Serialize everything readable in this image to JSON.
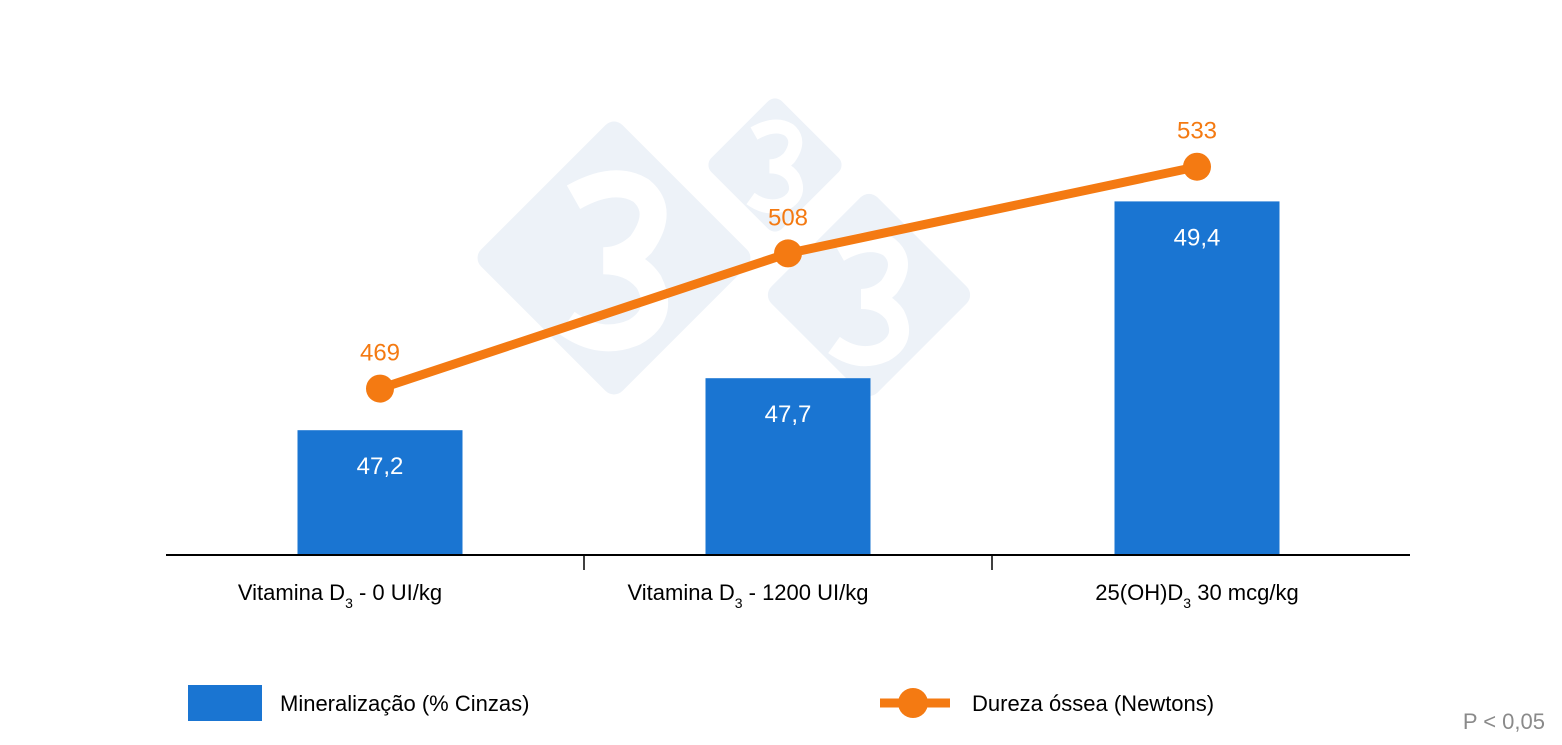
{
  "chart_data": {
    "type": "bar+line",
    "categories": [
      {
        "main": "Vitamina D",
        "sub": "3",
        "rest": " - 0 UI/kg"
      },
      {
        "main": "Vitamina D",
        "sub": "3",
        "rest": " - 1200 UI/kg"
      },
      {
        "main": "25(OH)D",
        "sub": "3",
        "rest": " 30 mcg/kg"
      }
    ],
    "series": [
      {
        "name": "Mineralização (% Cinzas)",
        "type": "bar",
        "axis": "primary",
        "values": [
          47.2,
          47.7,
          49.4
        ],
        "labels": [
          "47,2",
          "47,7",
          "49,4"
        ],
        "color": "#1a75d2"
      },
      {
        "name": "Dureza óssea (Newtons)",
        "type": "line",
        "axis": "secondary",
        "values": [
          469,
          508,
          533
        ],
        "labels": [
          "469",
          "508",
          "533"
        ],
        "color": "#f47a12"
      }
    ],
    "ylim": [
      46,
      51
    ],
    "y2lim": [
      421,
      571
    ],
    "grid": false,
    "legend": "bottom",
    "annotation": "P < 0,05"
  }
}
